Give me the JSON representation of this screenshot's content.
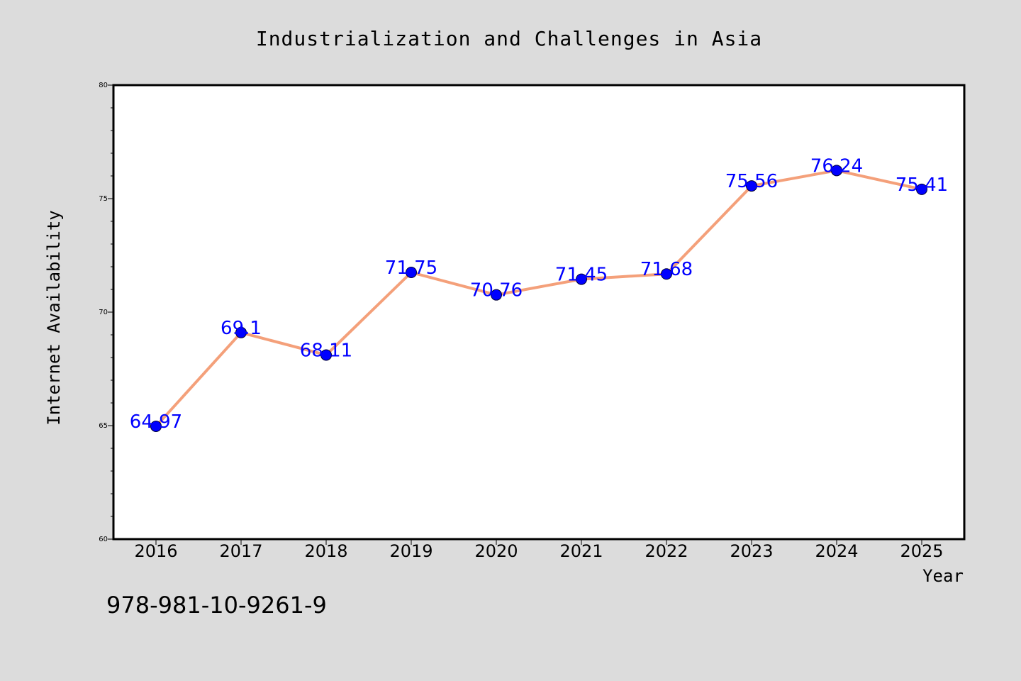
{
  "chart_data": {
    "type": "line",
    "title": "Industrialization and Challenges in Asia",
    "xlabel": "Year",
    "ylabel": "Internet Availability",
    "categories": [
      "2016",
      "2017",
      "2018",
      "2019",
      "2020",
      "2021",
      "2022",
      "2023",
      "2024",
      "2025"
    ],
    "series": [
      {
        "values": [
          64.97,
          69.1,
          68.11,
          71.75,
          70.76,
          71.45,
          71.68,
          75.56,
          76.24,
          75.41
        ],
        "labels": [
          "64.97",
          "69.1",
          "68.11",
          "71.75",
          "70.76",
          "71.45",
          "71.68",
          "75.56",
          "76.24",
          "75.41"
        ],
        "line_color": "#f4a07a",
        "marker_color": "#0000ff",
        "label_color": "#0000ff"
      }
    ],
    "ylim": [
      60,
      80
    ],
    "yticks": [
      "60",
      "65",
      "70",
      "75",
      "80"
    ],
    "grid": false,
    "legend": "none"
  },
  "footer": {
    "isbn": "978-981-10-9261-9"
  },
  "colors": {
    "background": "#dcdcdc",
    "plot_background": "#ffffff"
  }
}
